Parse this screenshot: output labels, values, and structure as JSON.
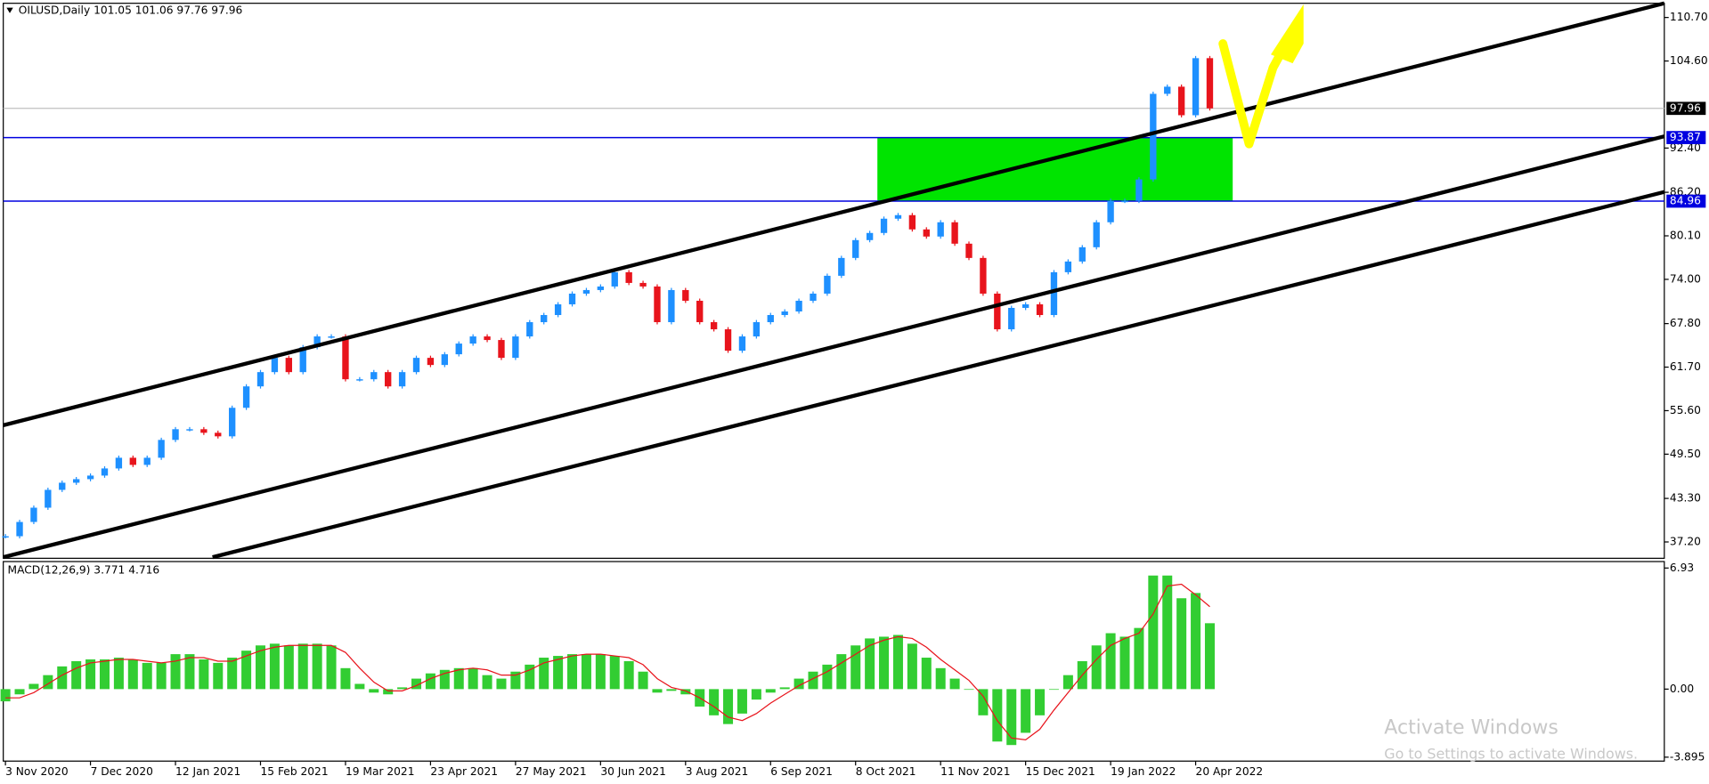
{
  "chart_data": [
    {
      "type": "candlestick",
      "title": "OILUSD,Daily  101.05 101.06 97.76 97.96",
      "categories": [
        "3 Nov 2020",
        null,
        null,
        null,
        null,
        null,
        "7 Dec 2020",
        null,
        null,
        null,
        null,
        null,
        "12 Jan 2021",
        null,
        null,
        null,
        null,
        null,
        "15 Feb 2021",
        null,
        null,
        null,
        null,
        null,
        "19 Mar 2021",
        null,
        null,
        null,
        null,
        null,
        "23 Apr 2021",
        null,
        null,
        null,
        null,
        null,
        "27 May 2021",
        null,
        null,
        null,
        null,
        null,
        "30 Jun 2021",
        null,
        null,
        null,
        null,
        null,
        "3 Aug 2021",
        null,
        null,
        null,
        null,
        null,
        "6 Sep 2021",
        null,
        null,
        null,
        null,
        null,
        "8 Oct 2021",
        null,
        null,
        null,
        null,
        null,
        "11 Nov 2021",
        null,
        null,
        null,
        null,
        null,
        "15 Dec 2021",
        null,
        null,
        null,
        null,
        null,
        "19 Jan 2022",
        null,
        null,
        null,
        null,
        null,
        "20 Apr 2022",
        null
      ],
      "values": [
        38,
        40,
        42,
        44.5,
        45.5,
        46,
        46.5,
        47.5,
        49,
        48,
        49,
        51.5,
        53,
        53,
        52.5,
        52,
        56,
        59,
        61,
        63,
        61,
        64.5,
        66,
        66,
        60,
        60,
        61,
        59,
        61,
        63,
        62,
        63.5,
        65,
        66,
        65.5,
        63,
        66,
        68,
        69,
        70.5,
        72,
        72.5,
        73,
        75,
        73.5,
        73,
        68,
        72.5,
        71,
        68,
        67,
        64,
        66,
        68,
        69,
        69.5,
        71,
        72,
        74.5,
        77,
        79.5,
        80.5,
        82.5,
        83,
        81,
        80,
        82,
        79,
        77,
        72,
        67,
        70,
        70.5,
        69,
        75,
        76.5,
        78.5,
        82,
        85,
        85,
        88,
        100,
        101,
        97,
        105,
        97.96
      ],
      "up_color": "#1e90ff",
      "down_color": "#e8141c",
      "ylim": [
        34.91,
        112.69
      ],
      "yticks": [
        {
          "value": 110.7,
          "label": "110.70"
        },
        {
          "value": 104.6,
          "label": "104.60"
        },
        {
          "value": 92.4,
          "label": "92.40"
        },
        {
          "value": 86.2,
          "label": "86.20"
        },
        {
          "value": 80.1,
          "label": "80.10"
        },
        {
          "value": 74,
          "label": "74.00"
        },
        {
          "value": 67.8,
          "label": "67.80"
        },
        {
          "value": 61.7,
          "label": "61.70"
        },
        {
          "value": 55.6,
          "label": "55.60"
        },
        {
          "value": 49.5,
          "label": "49.50"
        },
        {
          "value": 43.3,
          "label": "43.30"
        },
        {
          "value": 37.2,
          "label": "37.20"
        }
      ],
      "levels": [
        93.87,
        84.96
      ],
      "level_color": "#0000e0",
      "zone_color": "#00e400",
      "last_price": 97.96,
      "last_price_color": "#c0c0c0"
    },
    {
      "type": "macd",
      "title": "MACD(12,26,9) 3.771 4.716",
      "values": [
        -0.7,
        -0.3,
        0.3,
        0.8,
        1.3,
        1.6,
        1.7,
        1.7,
        1.8,
        1.7,
        1.5,
        1.5,
        2.0,
        2.0,
        1.7,
        1.5,
        1.8,
        2.2,
        2.5,
        2.6,
        2.5,
        2.6,
        2.6,
        2.5,
        1.2,
        0.3,
        -0.2,
        -0.3,
        0.1,
        0.6,
        0.9,
        1.1,
        1.2,
        1.2,
        0.8,
        0.6,
        1.0,
        1.4,
        1.8,
        1.9,
        2.0,
        2.0,
        2.0,
        1.9,
        1.6,
        1.0,
        -0.2,
        -0.1,
        -0.3,
        -1.0,
        -1.5,
        -2.0,
        -1.4,
        -0.6,
        -0.2,
        0.1,
        0.6,
        1.0,
        1.4,
        2.0,
        2.5,
        2.9,
        3.0,
        3.1,
        2.6,
        1.8,
        1.2,
        0.6,
        0.0,
        -1.5,
        -3.0,
        -3.2,
        -2.5,
        -1.5,
        0.0,
        0.8,
        1.6,
        2.5,
        3.2,
        3.0,
        3.5,
        6.5,
        6.5,
        5.2,
        5.5,
        3.771
      ],
      "signal": [
        -0.5,
        -0.5,
        -0.2,
        0.3,
        0.8,
        1.2,
        1.5,
        1.6,
        1.7,
        1.7,
        1.6,
        1.5,
        1.6,
        1.8,
        1.8,
        1.6,
        1.6,
        1.9,
        2.2,
        2.4,
        2.5,
        2.5,
        2.5,
        2.5,
        2.1,
        1.2,
        0.4,
        -0.1,
        -0.1,
        0.2,
        0.6,
        0.9,
        1.1,
        1.2,
        1.1,
        0.8,
        0.8,
        1.1,
        1.5,
        1.7,
        1.9,
        2.0,
        2.0,
        1.9,
        1.8,
        1.4,
        0.6,
        0.1,
        -0.1,
        -0.5,
        -1.0,
        -1.6,
        -1.8,
        -1.4,
        -0.8,
        -0.3,
        0.2,
        0.6,
        1.0,
        1.5,
        2.0,
        2.5,
        2.8,
        3.0,
        2.9,
        2.4,
        1.7,
        1.1,
        0.5,
        -0.4,
        -1.8,
        -2.8,
        -2.9,
        -2.3,
        -1.2,
        -0.2,
        0.8,
        1.7,
        2.5,
        2.9,
        3.2,
        4.3,
        5.9,
        6.0,
        5.4,
        4.716
      ],
      "color": "#32cd32",
      "signal_color": "#e8141c",
      "ylim": [
        -4.12,
        7.3
      ],
      "yticks": [
        6.93,
        {
          "value": 0,
          "label": "0.00"
        },
        -3.895
      ]
    }
  ],
  "watermark": {
    "title": "Activate Windows",
    "text": "Go to Settings to activate Windows."
  }
}
